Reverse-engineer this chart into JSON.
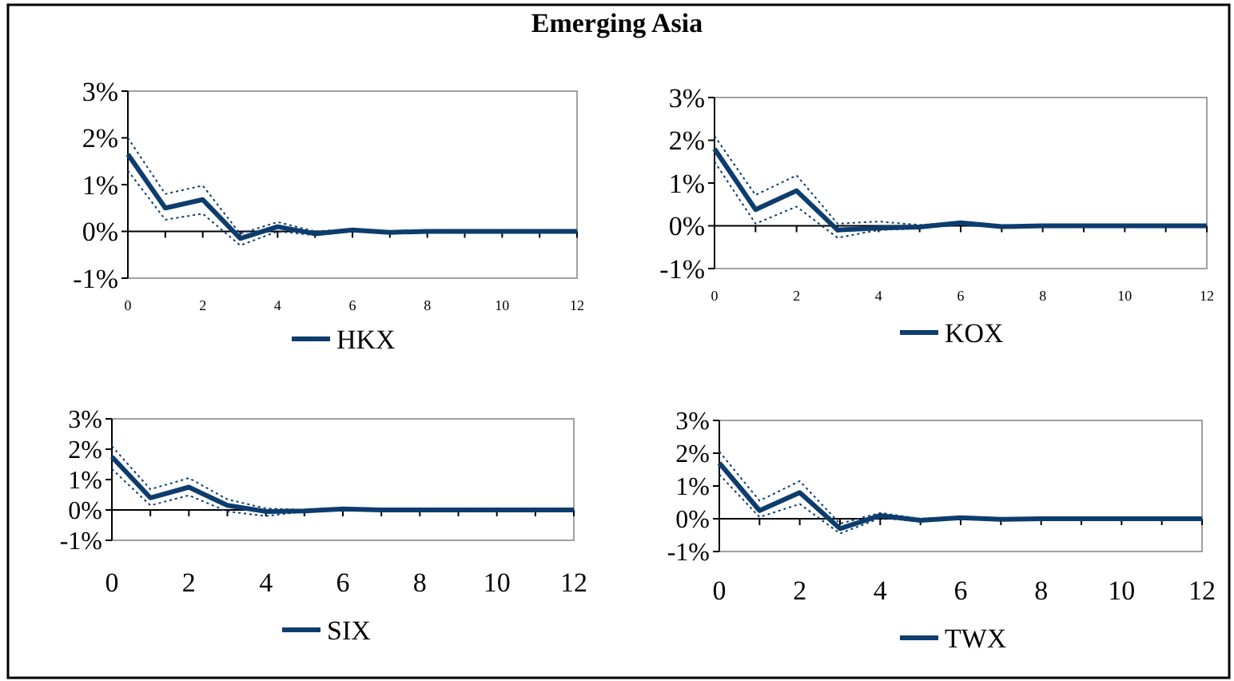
{
  "chart_data": [
    {
      "type": "line",
      "title": "Emerging Asia",
      "x": [
        0,
        1,
        2,
        3,
        4,
        5,
        6,
        7,
        8,
        9,
        10,
        11,
        12
      ],
      "xlim": [
        0,
        12
      ],
      "xticks": [
        0,
        2,
        4,
        6,
        8,
        10,
        12
      ],
      "ylim": [
        -1,
        3
      ],
      "yticks": [
        {
          "value": -1,
          "label": "-1%"
        },
        {
          "value": 0,
          "label": "0%"
        },
        {
          "value": 1,
          "label": "1%"
        },
        {
          "value": 2,
          "label": "2%"
        },
        {
          "value": 3,
          "label": "3%"
        }
      ],
      "legend": "bottom",
      "series": [
        {
          "name": "HKX",
          "color": "#0d3d6e",
          "line_style": "solid",
          "values": [
            1.65,
            0.5,
            0.68,
            -0.15,
            0.1,
            -0.05,
            0.03,
            -0.02,
            0,
            0,
            0,
            0,
            0
          ]
        },
        {
          "color": "#0d3d6e",
          "line_style": "dotted",
          "values": [
            1.3,
            0.25,
            0.38,
            -0.3,
            0.0,
            -0.08,
            0.0,
            -0.03,
            0,
            0,
            0,
            0,
            0
          ]
        },
        {
          "color": "#0d3d6e",
          "line_style": "dotted",
          "values": [
            2.0,
            0.8,
            0.98,
            -0.05,
            0.2,
            0.0,
            0.05,
            0.0,
            0,
            0,
            0,
            0,
            0
          ]
        }
      ]
    },
    {
      "type": "line",
      "x": [
        0,
        1,
        2,
        3,
        4,
        5,
        6,
        7,
        8,
        9,
        10,
        11,
        12
      ],
      "xlim": [
        0,
        12
      ],
      "xticks": [
        0,
        2,
        4,
        6,
        8,
        10,
        12
      ],
      "ylim": [
        -1,
        3
      ],
      "yticks": [
        {
          "value": -1,
          "label": "-1%"
        },
        {
          "value": 0,
          "label": "0%"
        },
        {
          "value": 1,
          "label": "1%"
        },
        {
          "value": 2,
          "label": "2%"
        },
        {
          "value": 3,
          "label": "3%"
        }
      ],
      "legend": "bottom",
      "series": [
        {
          "name": "KOX",
          "color": "#0d3d6e",
          "line_style": "solid",
          "values": [
            1.8,
            0.38,
            0.82,
            -0.1,
            -0.05,
            -0.03,
            0.07,
            -0.02,
            0,
            0,
            0,
            0,
            0
          ]
        },
        {
          "color": "#0d3d6e",
          "line_style": "dotted",
          "values": [
            1.5,
            0.05,
            0.45,
            -0.28,
            -0.1,
            -0.06,
            0.05,
            -0.03,
            0,
            0,
            0,
            0,
            0
          ]
        },
        {
          "color": "#0d3d6e",
          "line_style": "dotted",
          "values": [
            2.1,
            0.72,
            1.18,
            0.05,
            0.1,
            0.02,
            0.09,
            0.0,
            0,
            0,
            0,
            0,
            0
          ]
        }
      ]
    },
    {
      "type": "line",
      "x": [
        0,
        1,
        2,
        3,
        4,
        5,
        6,
        7,
        8,
        9,
        10,
        11,
        12
      ],
      "xlim": [
        0,
        12
      ],
      "xticks": [
        0,
        2,
        4,
        6,
        8,
        10,
        12
      ],
      "ylim": [
        -1,
        3
      ],
      "yticks": [
        {
          "value": -1,
          "label": "-1%"
        },
        {
          "value": 0,
          "label": "0%"
        },
        {
          "value": 1,
          "label": "1%"
        },
        {
          "value": 2,
          "label": "2%"
        },
        {
          "value": 3,
          "label": "3%"
        }
      ],
      "legend": "bottom",
      "series": [
        {
          "name": "SIX",
          "color": "#0d3d6e",
          "line_style": "solid",
          "values": [
            1.75,
            0.4,
            0.75,
            0.15,
            -0.05,
            -0.03,
            0.03,
            0,
            0,
            0,
            0,
            0,
            0
          ]
        },
        {
          "color": "#0d3d6e",
          "line_style": "dotted",
          "values": [
            1.35,
            0.15,
            0.48,
            -0.05,
            -0.2,
            -0.05,
            0.01,
            0,
            0,
            0,
            0,
            0,
            0
          ]
        },
        {
          "color": "#0d3d6e",
          "line_style": "dotted",
          "values": [
            2.1,
            0.68,
            1.05,
            0.35,
            0.05,
            0.0,
            0.05,
            0,
            0,
            0,
            0,
            0,
            0
          ]
        }
      ]
    },
    {
      "type": "line",
      "x": [
        0,
        1,
        2,
        3,
        4,
        5,
        6,
        7,
        8,
        9,
        10,
        11,
        12
      ],
      "xlim": [
        0,
        12
      ],
      "xticks": [
        0,
        2,
        4,
        6,
        8,
        10,
        12
      ],
      "ylim": [
        -1,
        3
      ],
      "yticks": [
        {
          "value": -1,
          "label": "-1%"
        },
        {
          "value": 0,
          "label": "0%"
        },
        {
          "value": 1,
          "label": "1%"
        },
        {
          "value": 2,
          "label": "2%"
        },
        {
          "value": 3,
          "label": "3%"
        }
      ],
      "legend": "bottom",
      "series": [
        {
          "name": "TWX",
          "color": "#0d3d6e",
          "line_style": "solid",
          "values": [
            1.7,
            0.25,
            0.8,
            -0.3,
            0.1,
            -0.05,
            0.03,
            -0.02,
            0,
            0,
            0,
            0,
            0
          ]
        },
        {
          "color": "#0d3d6e",
          "line_style": "dotted",
          "values": [
            1.35,
            0.05,
            0.45,
            -0.45,
            0.02,
            -0.08,
            0.01,
            -0.03,
            0,
            0,
            0,
            0,
            0
          ]
        },
        {
          "color": "#0d3d6e",
          "line_style": "dotted",
          "values": [
            2.05,
            0.55,
            1.15,
            -0.15,
            0.18,
            0.0,
            0.05,
            0.0,
            0,
            0,
            0,
            0,
            0
          ]
        }
      ]
    }
  ]
}
